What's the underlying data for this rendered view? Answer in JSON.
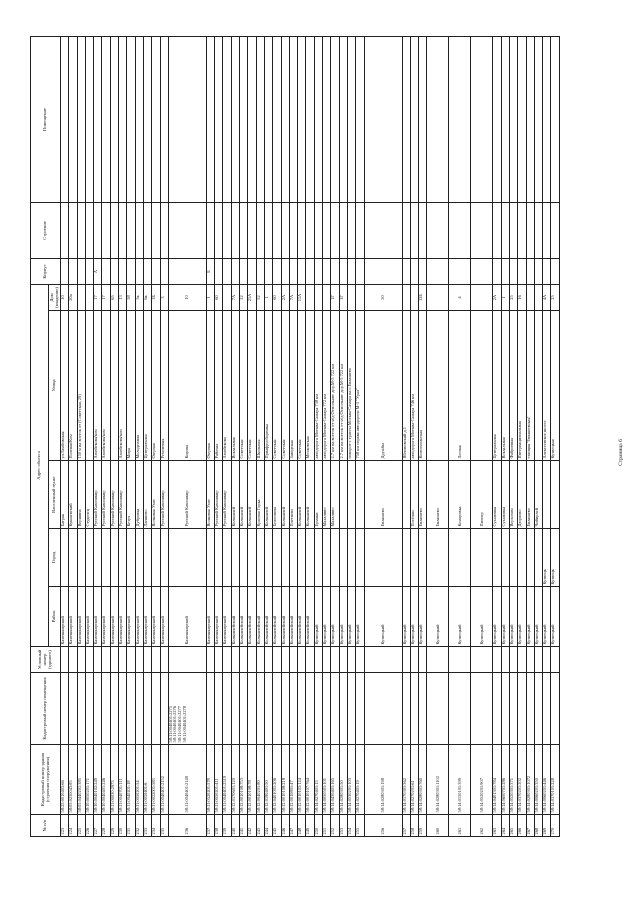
{
  "headers": {
    "num": "№ п/п",
    "kadnum_building": "Кадастровый номер здания (строения сооружения)",
    "kadnum_room": "Кадастровый номер помещения",
    "cond_num": "Условный номер (единого)",
    "address": "Адрес объекта",
    "rayon": "Район",
    "gorod": "Город",
    "punkt": "Населенный пункт",
    "ulitsa": "Улица",
    "dom": "Дом (владение)",
    "korpus": "Корпус",
    "stroenie": "Строение",
    "pomeshchenie": "Помещение"
  },
  "rows": [
    {
      "n": "223",
      "kb": "58:25:0010403:66",
      "kr": "",
      "cu": "",
      "r": "Камешкирский",
      "g": "",
      "p": "Батрак",
      "u": "ул.Тамбовская",
      "d": "10",
      "k": "",
      "s": "",
      "pm": ""
    },
    {
      "n": "224",
      "kb": "58:05:0230043:85",
      "kr": "",
      "cu": "",
      "r": "Камешкирский",
      "g": "",
      "p": "Кукшевский",
      "u": "Полевая/Ком",
      "d": "20а",
      "k": "",
      "s": "",
      "pm": ""
    },
    {
      "n": "225",
      "kb": "58:05:0440201:385",
      "kr": "",
      "cu": "",
      "r": "Камешкирский",
      "g": "",
      "p": "Вершина",
      "u": "150 м на восток от (Советская, 29)",
      "d": "",
      "k": "",
      "s": "",
      "pm": ""
    },
    {
      "n": "226",
      "kb": "58:10:0050201:171",
      "kr": "",
      "cu": "",
      "r": "Камешкирский",
      "g": "",
      "p": "Студенец",
      "u": "",
      "d": "",
      "k": "",
      "s": "",
      "pm": ""
    },
    {
      "n": "227",
      "kb": "58:10:0040102:249",
      "kr": "",
      "cu": "",
      "r": "Камешкирский",
      "g": "",
      "p": "Русский Камешкир",
      "u": "Азизбекова/ком",
      "d": "17",
      "k": "А",
      "s": "",
      "pm": ""
    },
    {
      "n": "228",
      "kb": "58:10:0040401:246",
      "kr": "",
      "cu": "",
      "r": "Камешкирский",
      "g": "",
      "p": "Русский Камешкир",
      "u": "Азизбекова/ком",
      "d": "17",
      "k": "",
      "s": "",
      "pm": ""
    },
    {
      "n": "229",
      "kb": "58:11:00030:2973",
      "kr": "",
      "cu": "",
      "r": "Камешкирский",
      "g": "",
      "p": "Русский Камешкир",
      "u": "",
      "d": "65",
      "k": "",
      "s": "",
      "pm": ""
    },
    {
      "n": "230",
      "kb": "58:11:0040701:111",
      "kr": "",
      "cu": "",
      "r": "Камешкирский",
      "g": "",
      "p": "Русский Камешкир",
      "u": "Азизбекова/ком",
      "d": "13",
      "k": "",
      "s": "",
      "pm": ""
    },
    {
      "n": "231",
      "kb": "58:11:0040201:18",
      "kr": "",
      "cu": "",
      "r": "Камешкирский",
      "g": "",
      "p": "Кезуч",
      "u": "Мира",
      "d": "58",
      "k": "",
      "s": "",
      "pm": ""
    },
    {
      "n": "232",
      "kb": "58:11:0050201:54",
      "kr": "",
      "cu": "",
      "r": "Камешкирский",
      "g": "",
      "p": "Дубровка",
      "u": "Молодежная",
      "d": "5к",
      "k": "",
      "s": "",
      "pm": ""
    },
    {
      "n": "233",
      "kb": "58:11:0050401:6",
      "kr": "",
      "cu": "",
      "r": "Камешкирский",
      "g": "",
      "p": "Лапшово",
      "u": "Центральная",
      "d": "6к",
      "k": "",
      "s": "",
      "pm": ""
    },
    {
      "n": "234",
      "kb": "58:11:0022001:583",
      "kr": "",
      "cu": "",
      "r": "Камешкирский",
      "g": "",
      "p": "Волковая Узмс",
      "u": "Озерная",
      "d": "1Б",
      "k": "",
      "s": "",
      "pm": ""
    },
    {
      "n": "235",
      "kb": "58:11:0040401:2152",
      "kr": "",
      "cu": "",
      "r": "Камешкирский",
      "g": "",
      "p": "Русский Камешкир",
      "u": "Ремонтная",
      "d": "3",
      "k": "",
      "s": "",
      "pm": ""
    },
    {
      "n": "236",
      "kb": "58:11:0040401:2149",
      "kr": "58:11:0040401:2275 58:11:0040401:2276 58:11:0040401:2277 58:11:0040401:2278",
      "cu": "",
      "r": "Камешкирский",
      "g": "",
      "p": "Русский Камешкир",
      "u": "Кирова",
      "d": "10",
      "k": "",
      "s": "",
      "pm": "",
      "tall": true
    },
    {
      "n": "237",
      "kb": "58:11:0520201:578",
      "kr": "",
      "cu": "",
      "r": "Камешкирский",
      "g": "",
      "p": "Волковая Узмс",
      "u": "Озерная",
      "d": "1",
      "k": "Б",
      "s": "",
      "pm": ""
    },
    {
      "n": "238",
      "kb": "58:11:0050201:411",
      "kr": "",
      "cu": "",
      "r": "Камешкирский",
      "g": "",
      "p": "Русский Камешкир",
      "u": "Рабочая",
      "d": "60",
      "k": "",
      "s": "",
      "pm": ""
    },
    {
      "n": "239",
      "kb": "58:11:0040401:2519",
      "kr": "",
      "cu": "",
      "r": "Камешкирский",
      "g": "",
      "p": "Русский Камешкир",
      "u": "Азизбекова",
      "d": "",
      "k": "",
      "s": "",
      "pm": ""
    },
    {
      "n": "240",
      "kb": "58:12:0170601:120",
      "kr": "",
      "cu": "",
      "r": "Колышлейский",
      "g": "",
      "p": "Колышлей",
      "u": "Вокзальная",
      "d": "7А",
      "k": "",
      "s": "",
      "pm": ""
    },
    {
      "n": "241",
      "kb": "58:12:0010108:753",
      "kr": "",
      "cu": "",
      "r": "Колышлейский",
      "g": "",
      "p": "Колышлей",
      "u": "Советская",
      "d": "22",
      "k": "",
      "s": "",
      "pm": ""
    },
    {
      "n": "242",
      "kb": "58:12:0010108:78",
      "kr": "",
      "cu": "",
      "r": "Колышлейский",
      "g": "",
      "p": "Колышлей",
      "u": "Советская",
      "d": "21А",
      "k": "",
      "s": "",
      "pm": ""
    },
    {
      "n": "243",
      "kb": "58:12:0040201:80",
      "kr": "",
      "cu": "",
      "r": "Колышлейский",
      "g": "",
      "p": "Красная Горка",
      "u": "Школьная",
      "d": "52",
      "k": "",
      "s": "",
      "pm": ""
    },
    {
      "n": "244",
      "kb": "58:12:0190401:50",
      "kr": "",
      "cu": "",
      "r": "Колышлейский",
      "g": "",
      "p": "Колышлей",
      "u": "Приафросборника",
      "d": "1",
      "k": "",
      "s": "",
      "pm": ""
    },
    {
      "n": "245",
      "kb": "58:12:0401001:206",
      "kr": "",
      "cu": "",
      "r": "Колышлейский",
      "g": "",
      "p": "Белоглина",
      "u": "Советская",
      "d": "60",
      "k": "",
      "s": "",
      "pm": ""
    },
    {
      "n": "246",
      "kb": "58:12:0010108:218",
      "kr": "",
      "cu": "",
      "r": "Колышлейский",
      "g": "",
      "p": "Колышлей",
      "u": "Советская",
      "d": "2А",
      "k": "",
      "s": "",
      "pm": ""
    },
    {
      "n": "247",
      "kb": "58:12:0010801:47",
      "kr": "",
      "cu": "",
      "r": "Колышлейский",
      "g": "",
      "p": "Плетнево",
      "u": "Заводская",
      "d": "7А",
      "k": "",
      "s": "",
      "pm": ""
    },
    {
      "n": "248",
      "kb": "58:12:0010103:124",
      "kr": "",
      "cu": "",
      "r": "Колышлейский",
      "g": "",
      "p": "Колышлей",
      "u": "Советская",
      "d": "11А",
      "k": "",
      "s": "",
      "pm": ""
    },
    {
      "n": "249",
      "kb": "58:12:0010107:764",
      "kr": "",
      "cu": "",
      "r": "Колышлейский",
      "g": "",
      "p": "Колышлей",
      "u": "Московская",
      "d": "",
      "k": "",
      "s": "",
      "pm": ""
    },
    {
      "n": "250",
      "kb": "58:14:0270401:15",
      "kr": "",
      "cu": "",
      "r": "Кузнецкий",
      "g": "",
      "p": "Ермаки",
      "u": "автодорога Москва-Самара 738 км",
      "d": "",
      "k": "",
      "s": "",
      "pm": ""
    },
    {
      "n": "251",
      "kb": "58:14:0050501:101",
      "kr": "",
      "cu": "",
      "r": "Кузнецкий",
      "g": "",
      "p": "Махалино",
      "u": "автодорога Москва-Самара 772 км",
      "d": "",
      "k": "",
      "s": "",
      "pm": ""
    },
    {
      "n": "252",
      "kb": "58:14:0430401:165",
      "kr": "",
      "cu": "",
      "r": "Кузнецкий",
      "g": "",
      "p": "Махалино",
      "u": "2.7 км на восток от м/д Осмольянс дор.М-5 722 км",
      "d": "1Г",
      "k": "",
      "s": "",
      "pm": ""
    },
    {
      "n": "253",
      "kb": "58:14:0280301:50",
      "kr": "",
      "cu": "",
      "r": "Кузнецкий",
      "g": "",
      "p": "",
      "u": "2.7 км на восток от м/д Осмольянс дор.М-5 722 км",
      "d": "1Г",
      "k": "",
      "s": "",
      "pm": ""
    },
    {
      "n": "254",
      "kb": "58:14:0530201:103",
      "kr": "",
      "cu": "",
      "r": "Кузнецкий",
      "g": "",
      "p": "",
      "u": "поворот с трассы Москва-Самара на с.Евлашево",
      "d": "",
      "k": "",
      "s": "",
      "pm": ""
    },
    {
      "n": "255",
      "kb": "58:14:0270401:19",
      "kr": "",
      "cu": "",
      "r": "Кузнецкий",
      "g": "",
      "p": "",
      "u": "758 км справа автодороги М-5 \"Урал\"",
      "d": "",
      "k": "",
      "s": "",
      "pm": ""
    },
    {
      "n": "256",
      "kb": "58:14:0280301:198",
      "kr": "",
      "cu": "",
      "r": "Кузнецкий",
      "g": "",
      "p": "Евлашево",
      "u": "Дружбы",
      "d": "50",
      "k": "",
      "s": "",
      "pm": "",
      "tall": true
    },
    {
      "n": "257",
      "kb": "58:14:0170301:362",
      "kr": "",
      "cu": "",
      "r": "Кузнецкий",
      "g": "",
      "p": "",
      "u": "Яблоновский д.1",
      "d": "",
      "k": "",
      "s": "",
      "pm": ""
    },
    {
      "n": "258",
      "kb": "58:14:0270201:61",
      "kr": "",
      "cu": "",
      "r": "Кузнецкий",
      "g": "",
      "p": "Посёлки",
      "u": "автодорога Москва-Самара 746 км",
      "d": "",
      "k": "",
      "s": "",
      "pm": ""
    },
    {
      "n": "259",
      "kb": "58:14:0280301:760",
      "kr": "",
      "cu": "",
      "r": "Кузнецкий",
      "g": "",
      "p": "Евлашево",
      "u": "Комсомольская",
      "d": "12Б",
      "k": "",
      "s": "",
      "pm": ""
    },
    {
      "n": "260",
      "kb": "58:14:0280301:1102",
      "kr": "",
      "cu": "",
      "r": "Кузнецкий",
      "g": "",
      "p": "Евлашево",
      "u": "",
      "d": "",
      "k": "",
      "s": "",
      "pm": "",
      "mid": true
    },
    {
      "n": "261",
      "kb": "58:14:0150101:399",
      "kr": "",
      "cu": "",
      "r": "Кузнецкий",
      "g": "",
      "p": "Комаровка",
      "u": "Лесная",
      "d": "4",
      "k": "",
      "s": "",
      "pm": "",
      "mid": true
    },
    {
      "n": "262",
      "kb": "58:14:0520201:907",
      "kr": "",
      "cu": "",
      "r": "Кузнецкий",
      "g": "",
      "p": "Пионер",
      "u": "",
      "d": "",
      "k": "",
      "s": "",
      "pm": "",
      "mid": true
    },
    {
      "n": "263",
      "kb": "58:14:0401301:784",
      "kr": "",
      "cu": "",
      "r": "Кузнецкий",
      "g": "",
      "p": "Сухановка",
      "u": "Центральная",
      "d": "2А",
      "k": "",
      "s": "",
      "pm": ""
    },
    {
      "n": "264",
      "kb": "58:14:0600701:286",
      "kr": "",
      "cu": "",
      "r": "Кузнецкий",
      "g": "",
      "p": "Сухановка",
      "u": "Вокзальная",
      "d": "1",
      "k": "",
      "s": "",
      "pm": ""
    },
    {
      "n": "265",
      "kb": "58:14:0520301:371",
      "kr": "",
      "cu": "",
      "r": "Кузнецкий",
      "g": "",
      "p": "Верхозим",
      "u": "Фабричная",
      "d": "25",
      "k": "",
      "s": "",
      "pm": ""
    },
    {
      "n": "266",
      "kb": "58:14:0370201:202",
      "kr": "",
      "cu": "",
      "r": "Кузнецкий",
      "g": "",
      "p": "Дюрлово",
      "u": "Интернациональная",
      "d": "16",
      "k": "",
      "s": "",
      "pm": ""
    },
    {
      "n": "267",
      "kb": "58:14:0280301:1072",
      "kr": "",
      "cu": "",
      "r": "Кузнецкий",
      "g": "",
      "p": "Евлашево",
      "u": "станция 'Евлашевская'",
      "d": "",
      "k": "",
      "s": "",
      "pm": ""
    },
    {
      "n": "268",
      "kb": "58:14:0060201:350",
      "kr": "",
      "cu": "",
      "r": "Кузнецкий",
      "g": "",
      "p": "Чибирлей",
      "u": "",
      "d": "",
      "k": "",
      "s": "",
      "pm": ""
    },
    {
      "n": "269",
      "kb": "58:14:0060201:446",
      "kr": "",
      "cu": "",
      "r": "Кузнецкий",
      "g": "Кузнецк",
      "p": "",
      "u": "Алексеевское шоссе",
      "d": "4А",
      "k": "",
      "s": "",
      "pm": ""
    },
    {
      "n": "270",
      "kb": "58:14:0370101:228",
      "kr": "",
      "cu": "",
      "r": "Кузнецкий",
      "g": "Кузнецк",
      "p": "",
      "u": "Кузнецкая",
      "d": "25",
      "k": "",
      "s": "",
      "pm": ""
    }
  ],
  "footer": "Страница 6"
}
